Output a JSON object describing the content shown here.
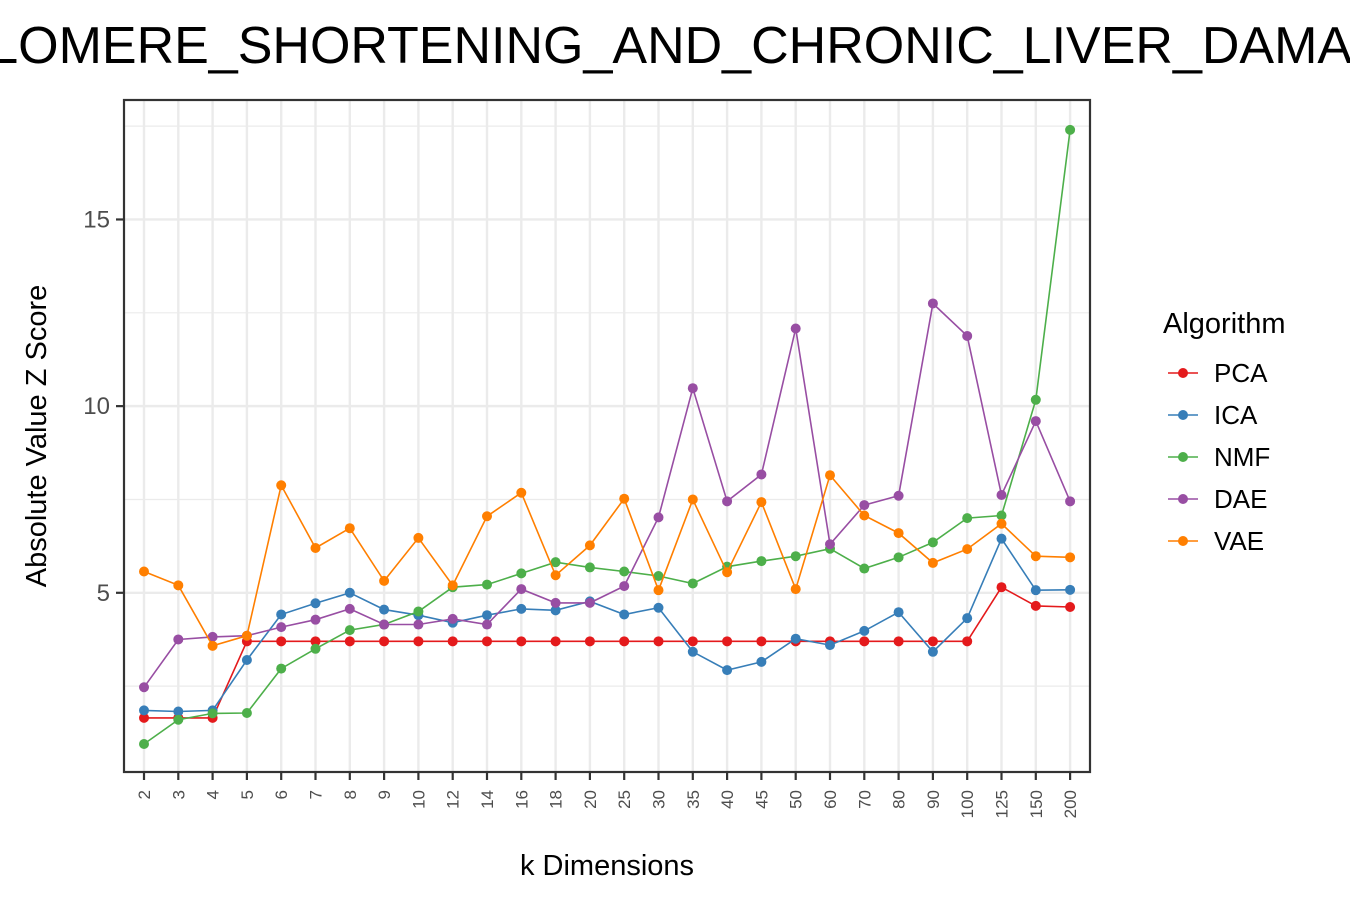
{
  "chart_data": {
    "type": "line",
    "title": "TELOMERE_SHORTENING_AND_CHRONIC_LIVER_DAMAGE",
    "xlabel": "k Dimensions",
    "ylabel": "Absolute Value Z Score",
    "categories": [
      "2",
      "3",
      "4",
      "5",
      "6",
      "7",
      "8",
      "9",
      "10",
      "12",
      "14",
      "16",
      "18",
      "20",
      "25",
      "30",
      "35",
      "40",
      "45",
      "50",
      "60",
      "70",
      "80",
      "90",
      "100",
      "125",
      "150",
      "200"
    ],
    "ylim": [
      0.2,
      18.2
    ],
    "y_ticks": [
      5,
      10,
      15
    ],
    "y_tick_labels": [
      "5",
      "10",
      "15"
    ],
    "grid": true,
    "legend": {
      "title": "Algorithm",
      "position": "right"
    },
    "series": [
      {
        "name": "PCA",
        "color": "#e41a1c",
        "values": [
          1.65,
          1.65,
          1.65,
          3.7,
          3.7,
          3.7,
          3.7,
          3.7,
          3.7,
          3.7,
          3.7,
          3.7,
          3.7,
          3.7,
          3.7,
          3.7,
          3.7,
          3.7,
          3.7,
          3.7,
          3.7,
          3.7,
          3.7,
          3.7,
          3.7,
          5.15,
          4.65,
          4.62
        ]
      },
      {
        "name": "ICA",
        "color": "#377eb8",
        "values": [
          1.85,
          1.82,
          1.85,
          3.2,
          4.42,
          4.72,
          5.0,
          4.55,
          4.4,
          4.2,
          4.4,
          4.57,
          4.53,
          4.77,
          4.42,
          4.6,
          3.42,
          2.93,
          3.15,
          3.77,
          3.6,
          3.98,
          4.48,
          3.42,
          4.32,
          6.45,
          5.07,
          5.08
        ]
      },
      {
        "name": "NMF",
        "color": "#4daf4a",
        "values": [
          0.95,
          1.6,
          1.77,
          1.78,
          2.97,
          3.5,
          4.0,
          4.15,
          4.5,
          5.15,
          5.22,
          5.52,
          5.82,
          5.68,
          5.57,
          5.45,
          5.25,
          5.7,
          5.85,
          5.98,
          6.18,
          5.65,
          5.95,
          6.35,
          7.0,
          7.07,
          10.17,
          17.4
        ]
      },
      {
        "name": "DAE",
        "color": "#984ea3",
        "values": [
          2.47,
          3.75,
          3.82,
          3.85,
          4.08,
          4.28,
          4.57,
          4.15,
          4.15,
          4.3,
          4.15,
          5.1,
          4.73,
          4.73,
          5.18,
          7.02,
          10.48,
          7.45,
          8.17,
          12.08,
          6.3,
          7.35,
          7.6,
          12.75,
          11.88,
          7.62,
          9.6,
          7.45
        ]
      },
      {
        "name": "VAE",
        "color": "#ff7f00",
        "values": [
          5.57,
          5.2,
          3.58,
          3.85,
          7.88,
          6.2,
          6.73,
          5.32,
          6.47,
          5.2,
          7.05,
          7.68,
          5.47,
          6.27,
          7.52,
          5.07,
          7.5,
          5.55,
          7.43,
          5.1,
          8.15,
          7.07,
          6.6,
          5.8,
          6.17,
          6.85,
          5.98,
          5.95
        ]
      }
    ]
  }
}
